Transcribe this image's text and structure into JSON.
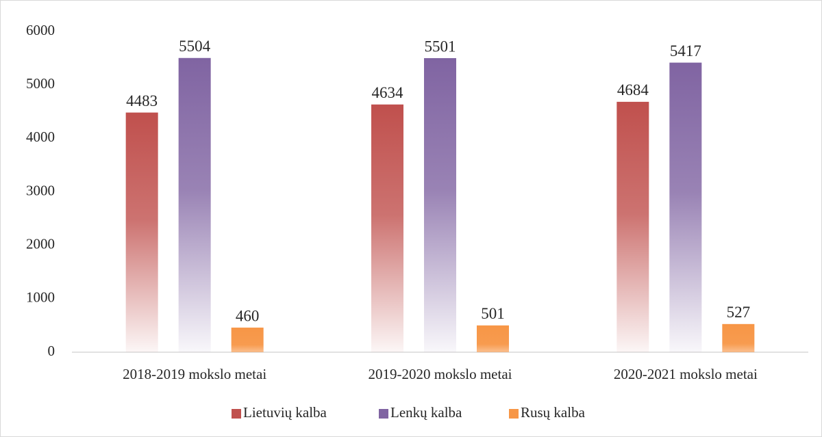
{
  "chart_data": {
    "type": "bar",
    "categories": [
      "2018-2019 mokslo metai",
      "2019-2020 mokslo metai",
      "2020-2021 mokslo metai"
    ],
    "series": [
      {
        "name": "Lietuvių kalba",
        "color": "#c0504d",
        "values": [
          4483,
          4634,
          4684
        ]
      },
      {
        "name": "Lenkų kalba",
        "color": "#8064a2",
        "values": [
          5504,
          5501,
          5417
        ]
      },
      {
        "name": "Rusų kalba",
        "color": "#f79646",
        "values": [
          460,
          501,
          527
        ]
      }
    ],
    "ylim": [
      0,
      6000
    ],
    "yticks": [
      0,
      1000,
      2000,
      3000,
      4000,
      5000,
      6000
    ],
    "grid": false,
    "legend": "bottom"
  }
}
